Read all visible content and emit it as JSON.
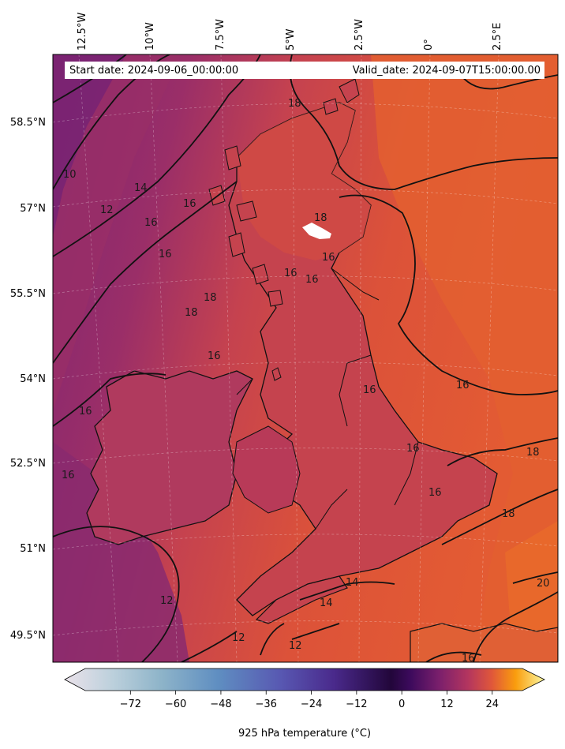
{
  "map": {
    "start_date": "Start date: 2024-09-06_00:00:00",
    "valid_date": "Valid_date: 2024-09-07T15:00:00.00",
    "longitude_labels": [
      "12.5°W",
      "10°W",
      "7.5°W",
      "5°W",
      "2.5°W",
      "0°",
      "2.5°E"
    ],
    "latitude_labels": [
      "58.5°N",
      "57°N",
      "55.5°N",
      "54°N",
      "52.5°N",
      "51°N",
      "49.5°N"
    ],
    "contour_labels": [
      {
        "id": "c10",
        "text": "10"
      },
      {
        "id": "c12a",
        "text": "12"
      },
      {
        "id": "c14a",
        "text": "14"
      },
      {
        "id": "c16a",
        "text": "16"
      },
      {
        "id": "c16b",
        "text": "16"
      },
      {
        "id": "c16c",
        "text": "16"
      },
      {
        "id": "c18a",
        "text": "18"
      },
      {
        "id": "c18b",
        "text": "18"
      },
      {
        "id": "c18c",
        "text": "18"
      },
      {
        "id": "c16d",
        "text": "16"
      },
      {
        "id": "c16e",
        "text": "16"
      },
      {
        "id": "c18d",
        "text": "18"
      },
      {
        "id": "c16f",
        "text": "16"
      },
      {
        "id": "c16g",
        "text": "16"
      },
      {
        "id": "c16h",
        "text": "16"
      },
      {
        "id": "c16i",
        "text": "16"
      },
      {
        "id": "c16j",
        "text": "16"
      },
      {
        "id": "c16k",
        "text": "16"
      },
      {
        "id": "c16l",
        "text": "16"
      },
      {
        "id": "c18e",
        "text": "18"
      },
      {
        "id": "c18f",
        "text": "18"
      },
      {
        "id": "c20",
        "text": "20"
      },
      {
        "id": "c12b",
        "text": "12"
      },
      {
        "id": "c14b",
        "text": "14"
      },
      {
        "id": "c14c",
        "text": "14"
      },
      {
        "id": "c12c",
        "text": "12"
      },
      {
        "id": "c12d",
        "text": "12"
      },
      {
        "id": "c16m",
        "text": "16"
      },
      {
        "id": "c16n",
        "text": "16"
      }
    ]
  },
  "colorbar": {
    "title": "925 hPa temperature (°C)",
    "min": -84,
    "max": 32,
    "ticks": [
      -72,
      -60,
      -48,
      -36,
      -24,
      -12,
      0,
      12,
      24
    ],
    "tick_labels": [
      "−72",
      "−60",
      "−48",
      "−36",
      "−24",
      "−12",
      "0",
      "12",
      "24"
    ]
  },
  "colors": {
    "sea_cool": "#8e2a6e",
    "sea_mid": "#b3385e",
    "land": "#b4395f",
    "warm": "#e0533b",
    "hot": "#ea6a2a",
    "contour": "#111111"
  }
}
